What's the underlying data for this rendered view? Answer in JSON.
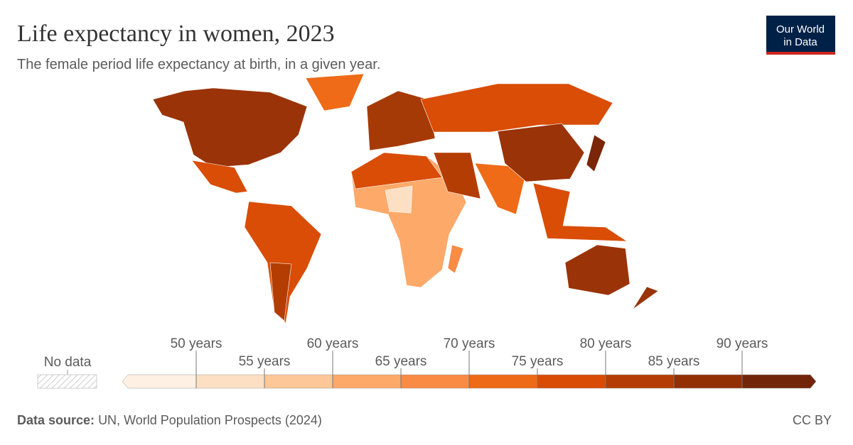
{
  "header": {
    "title": "Life expectancy in women, 2023",
    "subtitle": "The female period life expectancy at birth, in a given year."
  },
  "logo": {
    "line1": "Our World",
    "line2": "in Data"
  },
  "legend": {
    "no_data": "No data",
    "bin_colors": [
      "#fef1e4",
      "#fde0c3",
      "#fdc797",
      "#fca96a",
      "#f98b44",
      "#ee6a17",
      "#d84c06",
      "#b33d04",
      "#923003",
      "#73250a"
    ],
    "ticks": [
      {
        "value": 50,
        "label": "50 years"
      },
      {
        "value": 55,
        "label": "55 years"
      },
      {
        "value": 60,
        "label": "60 years"
      },
      {
        "value": 65,
        "label": "65 years"
      },
      {
        "value": 70,
        "label": "70 years"
      },
      {
        "value": 75,
        "label": "75 years"
      },
      {
        "value": 80,
        "label": "80 years"
      },
      {
        "value": 85,
        "label": "85 years"
      },
      {
        "value": 90,
        "label": "90 years"
      }
    ]
  },
  "footer": {
    "source_label": "Data source:",
    "source": "UN, World Population Prospects (2024)",
    "license": "CC BY"
  }
}
